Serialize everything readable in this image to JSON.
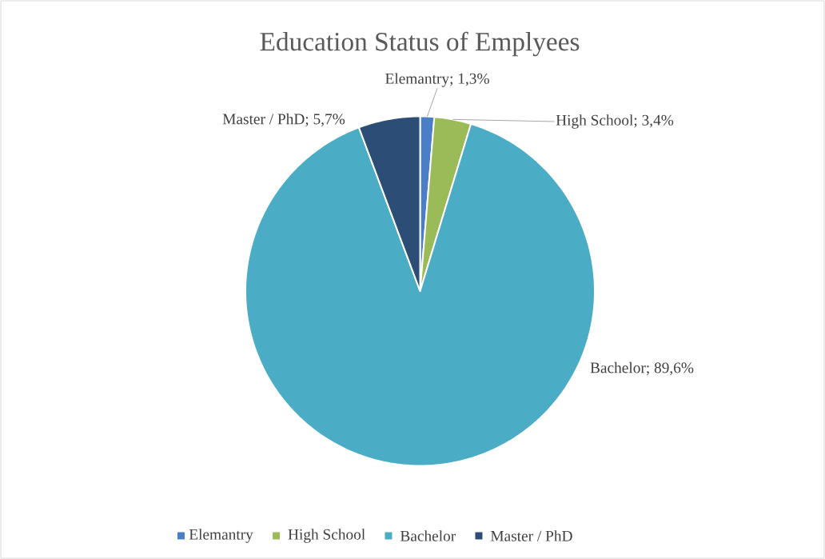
{
  "chart_data": {
    "type": "pie",
    "title": "Education Status of Emplyees",
    "categories": [
      "Elemantry",
      "High School",
      "Bachelor",
      "Master / PhD"
    ],
    "values": [
      1.3,
      3.4,
      89.6,
      5.7
    ],
    "value_labels": [
      "Elemantry; 1,3%",
      "High School; 3,4%",
      "Bachelor; 89,6%",
      "Master / PhD; 5,7%"
    ],
    "colors": [
      "#4a7fc8",
      "#9bbb59",
      "#4bacc6",
      "#2c4d75"
    ],
    "legend": "bottom"
  }
}
